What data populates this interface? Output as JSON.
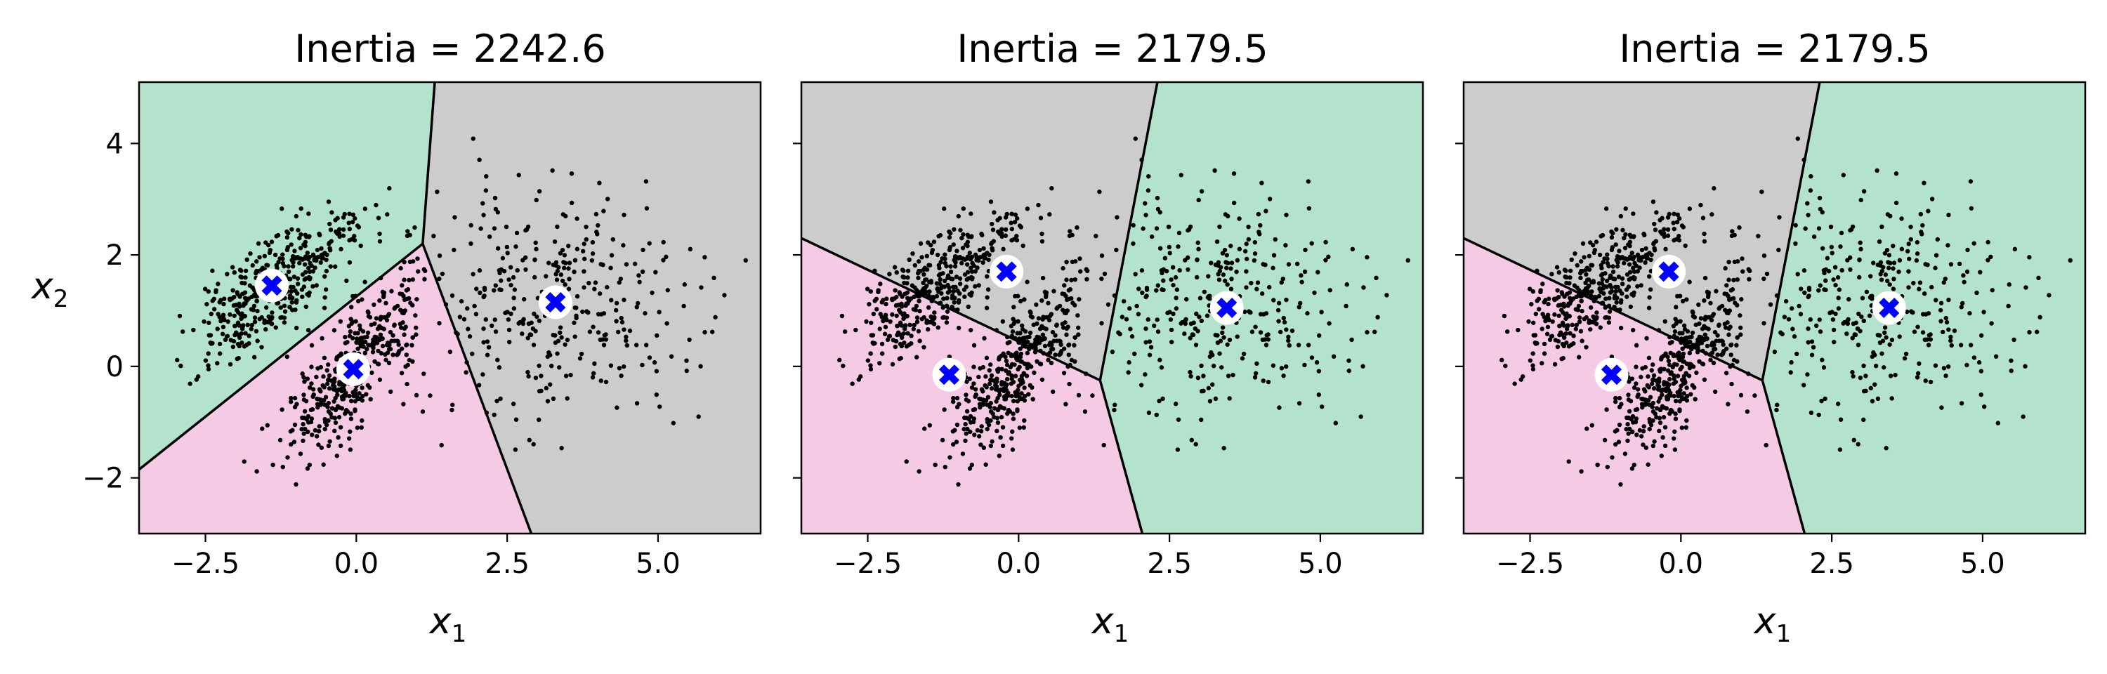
{
  "chart_data": [
    {
      "type": "scatter",
      "title": "Inertia = 2242.6",
      "xlabel": "x",
      "xlabel_sub": "1",
      "ylabel": "x",
      "ylabel_sub": "2",
      "xlim": [
        -3.6,
        6.7
      ],
      "ylim": [
        -3.0,
        5.1
      ],
      "xticks": [
        -2.5,
        0.0,
        2.5,
        5.0
      ],
      "xtick_labels": [
        "−2.5",
        "0.0",
        "2.5",
        "5.0"
      ],
      "yticks": [
        -2,
        0,
        2,
        4
      ],
      "ytick_labels": [
        "−2",
        "0",
        "2",
        "4"
      ],
      "show_yticklabels": true,
      "region_colors": {
        "A": "#b3e2cd",
        "B": "#f4cae4",
        "C": "#cccccc"
      },
      "boundary_color": "#000000",
      "centroid_color": "#0000ff",
      "centroids": [
        [
          -1.4,
          1.45
        ],
        [
          -0.05,
          -0.05
        ],
        [
          3.3,
          1.15
        ]
      ],
      "regions": [
        {
          "color_key": "A",
          "polygon": [
            [
              -3.6,
              5.1
            ],
            [
              1.3,
              5.1
            ],
            [
              1.1,
              2.2
            ],
            [
              -3.6,
              -1.85
            ]
          ]
        },
        {
          "color_key": "B",
          "polygon": [
            [
              -3.6,
              -1.85
            ],
            [
              1.1,
              2.2
            ],
            [
              2.9,
              -3.0
            ],
            [
              -3.6,
              -3.0
            ]
          ]
        },
        {
          "color_key": "C",
          "polygon": [
            [
              1.3,
              5.1
            ],
            [
              6.7,
              5.1
            ],
            [
              6.7,
              -3.0
            ],
            [
              2.9,
              -3.0
            ],
            [
              1.1,
              2.2
            ]
          ]
        }
      ],
      "boundaries": [
        [
          [
            1.3,
            5.1
          ],
          [
            1.1,
            2.2
          ]
        ],
        [
          [
            1.1,
            2.2
          ],
          [
            -3.6,
            -1.85
          ]
        ],
        [
          [
            1.1,
            2.2
          ],
          [
            2.9,
            -3.0
          ]
        ]
      ]
    },
    {
      "type": "scatter",
      "title": "Inertia = 2179.5",
      "xlabel": "x",
      "xlabel_sub": "1",
      "xlim": [
        -3.6,
        6.7
      ],
      "ylim": [
        -3.0,
        5.1
      ],
      "xticks": [
        -2.5,
        0.0,
        2.5,
        5.0
      ],
      "xtick_labels": [
        "−2.5",
        "0.0",
        "2.5",
        "5.0"
      ],
      "yticks": [
        -2,
        0,
        2,
        4
      ],
      "ytick_labels": [
        "",
        "",
        "",
        ""
      ],
      "show_yticklabels": false,
      "region_colors": {
        "A": "#b3e2cd",
        "B": "#f4cae4",
        "C": "#cccccc"
      },
      "boundary_color": "#000000",
      "centroid_color": "#0000ff",
      "centroids": [
        [
          -0.2,
          1.7
        ],
        [
          -1.15,
          -0.15
        ],
        [
          3.45,
          1.05
        ]
      ],
      "regions": [
        {
          "color_key": "C",
          "polygon": [
            [
              -3.6,
              5.1
            ],
            [
              2.3,
              5.1
            ],
            [
              1.35,
              -0.25
            ],
            [
              -3.6,
              2.3
            ]
          ]
        },
        {
          "color_key": "B",
          "polygon": [
            [
              -3.6,
              2.3
            ],
            [
              1.35,
              -0.25
            ],
            [
              2.05,
              -3.0
            ],
            [
              -3.6,
              -3.0
            ]
          ]
        },
        {
          "color_key": "A",
          "polygon": [
            [
              2.3,
              5.1
            ],
            [
              6.7,
              5.1
            ],
            [
              6.7,
              -3.0
            ],
            [
              2.05,
              -3.0
            ],
            [
              1.35,
              -0.25
            ]
          ]
        }
      ],
      "boundaries": [
        [
          [
            2.3,
            5.1
          ],
          [
            1.35,
            -0.25
          ]
        ],
        [
          [
            1.35,
            -0.25
          ],
          [
            -3.6,
            2.3
          ]
        ],
        [
          [
            1.35,
            -0.25
          ],
          [
            2.05,
            -3.0
          ]
        ]
      ]
    },
    {
      "type": "scatter",
      "title": "Inertia = 2179.5",
      "xlabel": "x",
      "xlabel_sub": "1",
      "xlim": [
        -3.6,
        6.7
      ],
      "ylim": [
        -3.0,
        5.1
      ],
      "xticks": [
        -2.5,
        0.0,
        2.5,
        5.0
      ],
      "xtick_labels": [
        "−2.5",
        "0.0",
        "2.5",
        "5.0"
      ],
      "yticks": [
        -2,
        0,
        2,
        4
      ],
      "ytick_labels": [
        "",
        "",
        "",
        ""
      ],
      "show_yticklabels": false,
      "region_colors": {
        "A": "#b3e2cd",
        "B": "#f4cae4",
        "C": "#cccccc"
      },
      "boundary_color": "#000000",
      "centroid_color": "#0000ff",
      "centroids": [
        [
          -0.2,
          1.7
        ],
        [
          -1.15,
          -0.15
        ],
        [
          3.45,
          1.05
        ]
      ],
      "regions": [
        {
          "color_key": "C",
          "polygon": [
            [
              -3.6,
              5.1
            ],
            [
              2.3,
              5.1
            ],
            [
              1.35,
              -0.25
            ],
            [
              -3.6,
              2.3
            ]
          ]
        },
        {
          "color_key": "B",
          "polygon": [
            [
              -3.6,
              2.3
            ],
            [
              1.35,
              -0.25
            ],
            [
              2.05,
              -3.0
            ],
            [
              -3.6,
              -3.0
            ]
          ]
        },
        {
          "color_key": "A",
          "polygon": [
            [
              2.3,
              5.1
            ],
            [
              6.7,
              5.1
            ],
            [
              6.7,
              -3.0
            ],
            [
              2.05,
              -3.0
            ],
            [
              1.35,
              -0.25
            ]
          ]
        }
      ],
      "boundaries": [
        [
          [
            2.3,
            5.1
          ],
          [
            1.35,
            -0.25
          ]
        ],
        [
          [
            1.35,
            -0.25
          ],
          [
            -3.6,
            2.3
          ]
        ],
        [
          [
            1.35,
            -0.25
          ],
          [
            2.05,
            -3.0
          ]
        ]
      ]
    }
  ],
  "scatter_clusters": [
    {
      "center": [
        -1.4,
        1.4
      ],
      "spread_major": 0.95,
      "spread_minor": 0.33,
      "angle_deg": 42,
      "count": 400
    },
    {
      "center": [
        -0.05,
        -0.05
      ],
      "spread_major": 0.95,
      "spread_minor": 0.33,
      "angle_deg": 58,
      "count": 400
    },
    {
      "center": [
        3.3,
        1.1
      ],
      "spread_major": 1.2,
      "spread_minor": 1.05,
      "angle_deg": 0,
      "count": 350
    }
  ]
}
